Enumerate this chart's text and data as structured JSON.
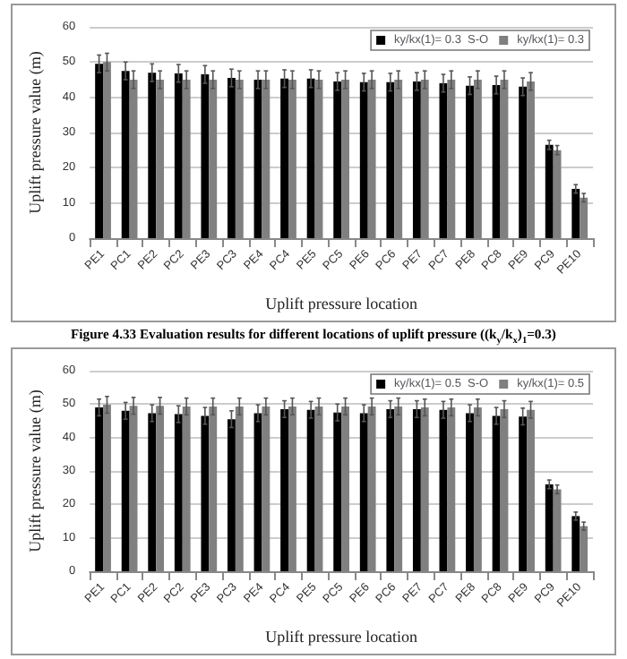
{
  "chart_data": [
    {
      "type": "bar",
      "xlabel": "Uplift pressure location",
      "ylabel": "Uplift pressure value (m)",
      "categories": [
        "PE1",
        "PC1",
        "PE2",
        "PC2",
        "PE3",
        "PC3",
        "PE4",
        "PC4",
        "PE5",
        "PC5",
        "PE6",
        "PC6",
        "PE7",
        "PC7",
        "PE8",
        "PC8",
        "PE9",
        "PC9",
        "PE10"
      ],
      "series": [
        {
          "name": "ky/kx(1)= 0.3  S-O",
          "color": "#000000",
          "values": [
            49.5,
            47.5,
            47,
            46.8,
            46.5,
            45.5,
            45,
            45.3,
            45.3,
            44.5,
            44.3,
            44.3,
            44.5,
            44,
            43.3,
            43.5,
            43,
            26.5,
            14
          ],
          "errors": [
            2.5,
            2.5,
            2.5,
            2.5,
            2.5,
            2.5,
            2.5,
            2.5,
            2.5,
            2.5,
            2.5,
            2.5,
            2.5,
            2.5,
            2.5,
            2.5,
            2.5,
            1.3,
            1.2
          ]
        },
        {
          "name": "ky/kx(1)= 0.3",
          "color": "#808080",
          "values": [
            50,
            45,
            45,
            45,
            45,
            45,
            45,
            45,
            45,
            45,
            45,
            45,
            45,
            45,
            45,
            45,
            44.5,
            25,
            11.5
          ],
          "errors": [
            2.5,
            2.5,
            2.5,
            2.5,
            2.5,
            2.5,
            2.5,
            2.5,
            2.5,
            2.5,
            2.5,
            2.5,
            2.5,
            2.5,
            2.5,
            2.5,
            2.5,
            1.3,
            1.2
          ]
        }
      ],
      "ylim": [
        0,
        60
      ],
      "yticks": [
        0,
        10,
        20,
        30,
        40,
        50,
        60
      ],
      "grid": "y",
      "legend": "top right",
      "annotations": [
        "Figure 4.33 Evaluation results for different locations of uplift pressure ((k$_{y}$/k$_{x}$)$_{1}$=0.3)"
      ]
    },
    {
      "type": "bar",
      "xlabel": "Uplift pressure location",
      "ylabel": "Uplift pressure value (m)",
      "categories": [
        "PE1",
        "PC1",
        "PE2",
        "PC2",
        "PE3",
        "PC3",
        "PE4",
        "PC4",
        "PE5",
        "PC5",
        "PE6",
        "PC6",
        "PE7",
        "PC7",
        "PE8",
        "PC8",
        "PE9",
        "PC9",
        "PE10"
      ],
      "series": [
        {
          "name": "ky/kx(1)= 0.5  S-O",
          "color": "#000000",
          "values": [
            49,
            48,
            47.3,
            47,
            46.5,
            45.5,
            47.3,
            48.5,
            48.3,
            47.5,
            47.3,
            48.5,
            48.5,
            48.3,
            47.3,
            46.5,
            46.3,
            26,
            16.5
          ],
          "errors": [
            2.5,
            2.5,
            2.5,
            2.5,
            2.5,
            2.5,
            2.5,
            2.5,
            2.5,
            2.5,
            2.5,
            2.5,
            2.5,
            2.5,
            2.5,
            2.5,
            2.5,
            1.3,
            1.2
          ]
        },
        {
          "name": "ky/kx(1)= 0.5",
          "color": "#808080",
          "values": [
            49.8,
            49.5,
            49.5,
            49.3,
            49.3,
            49.3,
            49.3,
            49.3,
            49.3,
            49.3,
            49.3,
            49.3,
            49,
            49,
            49,
            48.5,
            48.3,
            24.5,
            13.5
          ],
          "errors": [
            2.5,
            2.5,
            2.5,
            2.5,
            2.5,
            2.5,
            2.5,
            2.5,
            2.5,
            2.5,
            2.5,
            2.5,
            2.5,
            2.5,
            2.5,
            2.5,
            2.5,
            1.3,
            1.2
          ]
        }
      ],
      "ylim": [
        0,
        60
      ],
      "yticks": [
        0,
        10,
        20,
        30,
        40,
        50,
        60
      ],
      "grid": "y",
      "legend": "top right"
    }
  ]
}
